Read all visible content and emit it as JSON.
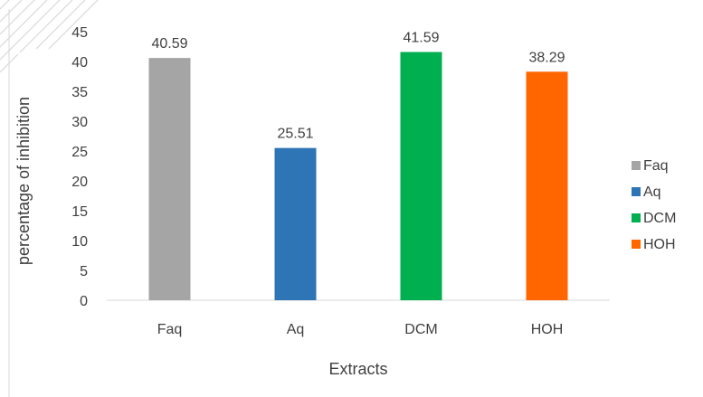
{
  "chart_data": {
    "type": "bar",
    "categories": [
      "Faq",
      "Aq",
      "DCM",
      "HOH"
    ],
    "values": [
      40.59,
      25.51,
      41.59,
      38.29
    ],
    "value_labels": [
      "40.59",
      "25.51",
      "41.59",
      "38.29"
    ],
    "colors": [
      "#A5A5A5",
      "#2E75B6",
      "#00B050",
      "#FF6600"
    ],
    "title": "",
    "xlabel": "Extracts",
    "ylabel": "percentage of inhibition",
    "ylim": [
      0,
      45
    ],
    "yticks": [
      "0",
      "5",
      "10",
      "15",
      "20",
      "25",
      "30",
      "35",
      "40",
      "45"
    ],
    "grid": false,
    "legend": {
      "position": "right",
      "entries": [
        "Faq",
        "Aq",
        "DCM",
        "HOH"
      ]
    }
  }
}
